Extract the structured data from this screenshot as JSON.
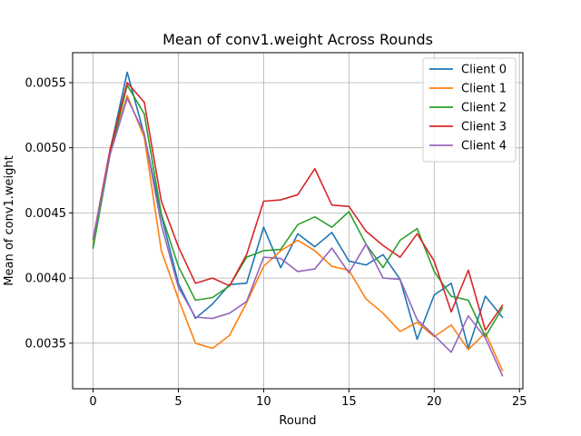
{
  "chart_data": {
    "type": "line",
    "title": "Mean of conv1.weight Across Rounds",
    "xlabel": "Round",
    "ylabel": "Mean of conv1.weight",
    "xlim": [
      -1.2,
      25.2
    ],
    "ylim": [
      0.00315,
      0.00573
    ],
    "xticks": [
      0,
      5,
      10,
      15,
      20,
      25
    ],
    "xtick_labels": [
      "0",
      "5",
      "10",
      "15",
      "20",
      "25"
    ],
    "yticks": [
      0.0035,
      0.004,
      0.0045,
      0.005,
      0.0055
    ],
    "ytick_labels": [
      "0.0035",
      "0.0040",
      "0.0045",
      "0.0050",
      "0.0055"
    ],
    "grid": true,
    "legend_position": "upper right",
    "x": [
      0,
      1,
      2,
      3,
      4,
      5,
      6,
      7,
      8,
      9,
      10,
      11,
      12,
      13,
      14,
      15,
      16,
      17,
      18,
      19,
      20,
      21,
      22,
      23,
      24
    ],
    "series": [
      {
        "name": "Client 0",
        "color": "#1f77b4",
        "values": [
          0.00424,
          0.00498,
          0.00558,
          0.0051,
          0.00448,
          0.00396,
          0.00369,
          0.0038,
          0.00395,
          0.00396,
          0.00439,
          0.00408,
          0.00434,
          0.00424,
          0.00435,
          0.00413,
          0.0041,
          0.00418,
          0.00399,
          0.00353,
          0.00387,
          0.00396,
          0.00346,
          0.00386,
          0.0037
        ]
      },
      {
        "name": "Client 1",
        "color": "#ff7f0e",
        "values": [
          0.00428,
          0.00496,
          0.0054,
          0.00508,
          0.00421,
          0.00384,
          0.0035,
          0.00346,
          0.00356,
          0.00381,
          0.00409,
          0.00421,
          0.00429,
          0.00421,
          0.00409,
          0.00406,
          0.00384,
          0.00373,
          0.00359,
          0.00366,
          0.00355,
          0.00364,
          0.00345,
          0.00358,
          0.00329
        ]
      },
      {
        "name": "Client 2",
        "color": "#2ca02c",
        "values": [
          0.00423,
          0.00495,
          0.00548,
          0.00526,
          0.00449,
          0.00409,
          0.00383,
          0.00385,
          0.00394,
          0.00416,
          0.00421,
          0.00422,
          0.00441,
          0.00447,
          0.00439,
          0.00451,
          0.00426,
          0.00408,
          0.00429,
          0.00438,
          0.00405,
          0.00386,
          0.00383,
          0.00355,
          0.00377
        ]
      },
      {
        "name": "Client 3",
        "color": "#d62728",
        "values": [
          0.0043,
          0.00499,
          0.0055,
          0.00535,
          0.00459,
          0.00424,
          0.00396,
          0.004,
          0.00394,
          0.00418,
          0.00459,
          0.0046,
          0.00464,
          0.00484,
          0.00456,
          0.00455,
          0.00436,
          0.00425,
          0.00416,
          0.00434,
          0.00413,
          0.00374,
          0.00406,
          0.0036,
          0.00379
        ]
      },
      {
        "name": "Client 4",
        "color": "#9467bd",
        "values": [
          0.0043,
          0.00495,
          0.00538,
          0.00511,
          0.00441,
          0.00393,
          0.0037,
          0.00369,
          0.00373,
          0.00382,
          0.00416,
          0.00415,
          0.00405,
          0.00407,
          0.00423,
          0.00404,
          0.00426,
          0.004,
          0.00399,
          0.00368,
          0.00356,
          0.00343,
          0.00371,
          0.00354,
          0.00325
        ]
      }
    ]
  }
}
